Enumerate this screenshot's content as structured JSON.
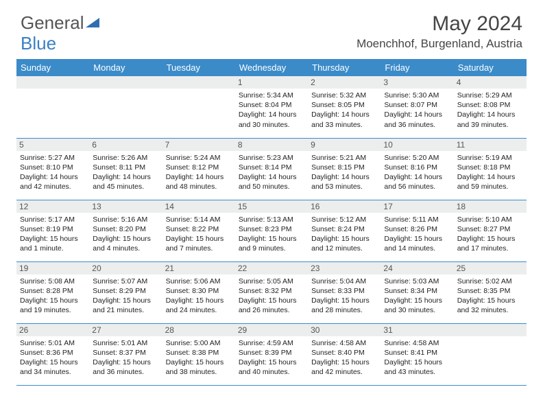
{
  "brand": {
    "part1": "General",
    "part2": "Blue"
  },
  "title": "May 2024",
  "location": "Moenchhof, Burgenland, Austria",
  "colors": {
    "header_bg": "#3b8bc9",
    "daynum_bg": "#eceded",
    "text": "#222222"
  },
  "weekdays": [
    "Sunday",
    "Monday",
    "Tuesday",
    "Wednesday",
    "Thursday",
    "Friday",
    "Saturday"
  ],
  "weeks": [
    [
      null,
      null,
      null,
      {
        "n": "1",
        "sr": "Sunrise: 5:34 AM",
        "ss": "Sunset: 8:04 PM",
        "d1": "Daylight: 14 hours",
        "d2": "and 30 minutes."
      },
      {
        "n": "2",
        "sr": "Sunrise: 5:32 AM",
        "ss": "Sunset: 8:05 PM",
        "d1": "Daylight: 14 hours",
        "d2": "and 33 minutes."
      },
      {
        "n": "3",
        "sr": "Sunrise: 5:30 AM",
        "ss": "Sunset: 8:07 PM",
        "d1": "Daylight: 14 hours",
        "d2": "and 36 minutes."
      },
      {
        "n": "4",
        "sr": "Sunrise: 5:29 AM",
        "ss": "Sunset: 8:08 PM",
        "d1": "Daylight: 14 hours",
        "d2": "and 39 minutes."
      }
    ],
    [
      {
        "n": "5",
        "sr": "Sunrise: 5:27 AM",
        "ss": "Sunset: 8:10 PM",
        "d1": "Daylight: 14 hours",
        "d2": "and 42 minutes."
      },
      {
        "n": "6",
        "sr": "Sunrise: 5:26 AM",
        "ss": "Sunset: 8:11 PM",
        "d1": "Daylight: 14 hours",
        "d2": "and 45 minutes."
      },
      {
        "n": "7",
        "sr": "Sunrise: 5:24 AM",
        "ss": "Sunset: 8:12 PM",
        "d1": "Daylight: 14 hours",
        "d2": "and 48 minutes."
      },
      {
        "n": "8",
        "sr": "Sunrise: 5:23 AM",
        "ss": "Sunset: 8:14 PM",
        "d1": "Daylight: 14 hours",
        "d2": "and 50 minutes."
      },
      {
        "n": "9",
        "sr": "Sunrise: 5:21 AM",
        "ss": "Sunset: 8:15 PM",
        "d1": "Daylight: 14 hours",
        "d2": "and 53 minutes."
      },
      {
        "n": "10",
        "sr": "Sunrise: 5:20 AM",
        "ss": "Sunset: 8:16 PM",
        "d1": "Daylight: 14 hours",
        "d2": "and 56 minutes."
      },
      {
        "n": "11",
        "sr": "Sunrise: 5:19 AM",
        "ss": "Sunset: 8:18 PM",
        "d1": "Daylight: 14 hours",
        "d2": "and 59 minutes."
      }
    ],
    [
      {
        "n": "12",
        "sr": "Sunrise: 5:17 AM",
        "ss": "Sunset: 8:19 PM",
        "d1": "Daylight: 15 hours",
        "d2": "and 1 minute."
      },
      {
        "n": "13",
        "sr": "Sunrise: 5:16 AM",
        "ss": "Sunset: 8:20 PM",
        "d1": "Daylight: 15 hours",
        "d2": "and 4 minutes."
      },
      {
        "n": "14",
        "sr": "Sunrise: 5:14 AM",
        "ss": "Sunset: 8:22 PM",
        "d1": "Daylight: 15 hours",
        "d2": "and 7 minutes."
      },
      {
        "n": "15",
        "sr": "Sunrise: 5:13 AM",
        "ss": "Sunset: 8:23 PM",
        "d1": "Daylight: 15 hours",
        "d2": "and 9 minutes."
      },
      {
        "n": "16",
        "sr": "Sunrise: 5:12 AM",
        "ss": "Sunset: 8:24 PM",
        "d1": "Daylight: 15 hours",
        "d2": "and 12 minutes."
      },
      {
        "n": "17",
        "sr": "Sunrise: 5:11 AM",
        "ss": "Sunset: 8:26 PM",
        "d1": "Daylight: 15 hours",
        "d2": "and 14 minutes."
      },
      {
        "n": "18",
        "sr": "Sunrise: 5:10 AM",
        "ss": "Sunset: 8:27 PM",
        "d1": "Daylight: 15 hours",
        "d2": "and 17 minutes."
      }
    ],
    [
      {
        "n": "19",
        "sr": "Sunrise: 5:08 AM",
        "ss": "Sunset: 8:28 PM",
        "d1": "Daylight: 15 hours",
        "d2": "and 19 minutes."
      },
      {
        "n": "20",
        "sr": "Sunrise: 5:07 AM",
        "ss": "Sunset: 8:29 PM",
        "d1": "Daylight: 15 hours",
        "d2": "and 21 minutes."
      },
      {
        "n": "21",
        "sr": "Sunrise: 5:06 AM",
        "ss": "Sunset: 8:30 PM",
        "d1": "Daylight: 15 hours",
        "d2": "and 24 minutes."
      },
      {
        "n": "22",
        "sr": "Sunrise: 5:05 AM",
        "ss": "Sunset: 8:32 PM",
        "d1": "Daylight: 15 hours",
        "d2": "and 26 minutes."
      },
      {
        "n": "23",
        "sr": "Sunrise: 5:04 AM",
        "ss": "Sunset: 8:33 PM",
        "d1": "Daylight: 15 hours",
        "d2": "and 28 minutes."
      },
      {
        "n": "24",
        "sr": "Sunrise: 5:03 AM",
        "ss": "Sunset: 8:34 PM",
        "d1": "Daylight: 15 hours",
        "d2": "and 30 minutes."
      },
      {
        "n": "25",
        "sr": "Sunrise: 5:02 AM",
        "ss": "Sunset: 8:35 PM",
        "d1": "Daylight: 15 hours",
        "d2": "and 32 minutes."
      }
    ],
    [
      {
        "n": "26",
        "sr": "Sunrise: 5:01 AM",
        "ss": "Sunset: 8:36 PM",
        "d1": "Daylight: 15 hours",
        "d2": "and 34 minutes."
      },
      {
        "n": "27",
        "sr": "Sunrise: 5:01 AM",
        "ss": "Sunset: 8:37 PM",
        "d1": "Daylight: 15 hours",
        "d2": "and 36 minutes."
      },
      {
        "n": "28",
        "sr": "Sunrise: 5:00 AM",
        "ss": "Sunset: 8:38 PM",
        "d1": "Daylight: 15 hours",
        "d2": "and 38 minutes."
      },
      {
        "n": "29",
        "sr": "Sunrise: 4:59 AM",
        "ss": "Sunset: 8:39 PM",
        "d1": "Daylight: 15 hours",
        "d2": "and 40 minutes."
      },
      {
        "n": "30",
        "sr": "Sunrise: 4:58 AM",
        "ss": "Sunset: 8:40 PM",
        "d1": "Daylight: 15 hours",
        "d2": "and 42 minutes."
      },
      {
        "n": "31",
        "sr": "Sunrise: 4:58 AM",
        "ss": "Sunset: 8:41 PM",
        "d1": "Daylight: 15 hours",
        "d2": "and 43 minutes."
      },
      null
    ]
  ]
}
